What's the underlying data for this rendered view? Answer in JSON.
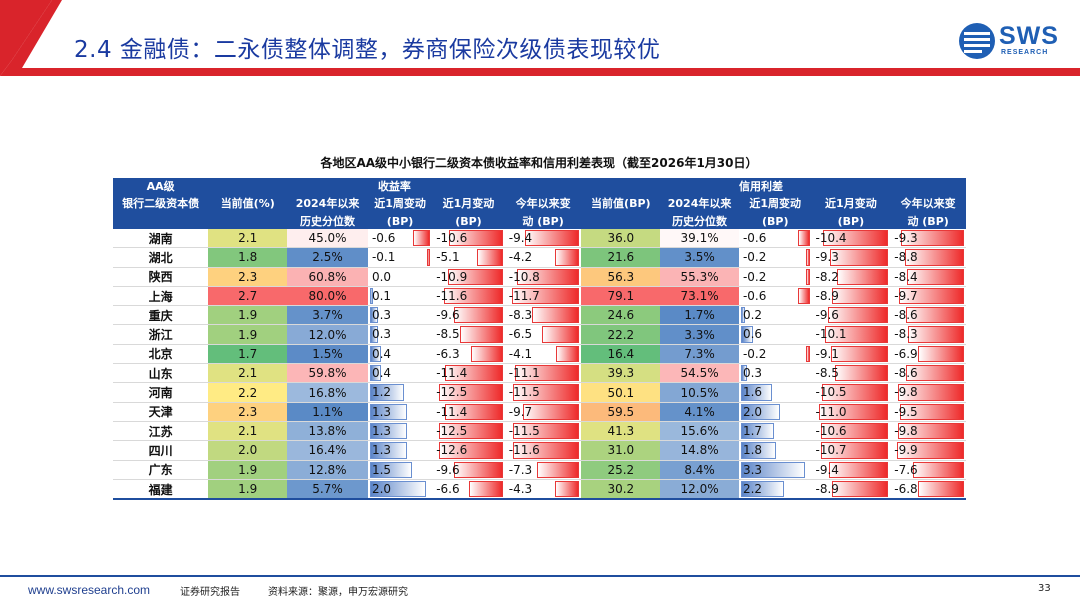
{
  "slide": {
    "title": "2.4 金融债：二永债整体调整，券商保险次级债表现较优",
    "logo_text": "SWS",
    "logo_sub": "RESEARCH"
  },
  "table": {
    "title": "各地区AA级中小银行二级资本债收益率和信用利差表现（截至2026年1月30日）",
    "group_yield": "收益率",
    "group_spread": "信用利差",
    "headers": {
      "region_l1": "AA级",
      "region_l2": "银行二级资本债",
      "cur_yield": "当前值(%)",
      "pct_l1": "2024年以来",
      "pct_l2": "历史分位数",
      "wk_l1": "近1周变动",
      "wk_l2": "(BP)",
      "mo_l1": "近1月变动",
      "mo_l2": "(BP)",
      "ytd_l1": "今年以来变",
      "ytd_l2": "动 (BP)",
      "cur_spread": "当前值(BP)",
      "spct_l1": "2024年以来",
      "spct_l2": "历史分位数",
      "swk_l1": "近1周变动",
      "swk_l2": "(BP)",
      "smo_l1": "近1月变动",
      "smo_l2": "(BP)",
      "sytd_l1": "今年以来变",
      "sytd_l2": "动 (BP)"
    },
    "rows": [
      {
        "region": "湖南",
        "y": "2.1",
        "yp": "45.0%",
        "yw": "-0.6",
        "ym": "-10.6",
        "yy": "-9.4",
        "s": "36.0",
        "sp": "39.1%",
        "sw": "-0.6",
        "sm": "-10.4",
        "sy": "-9.3"
      },
      {
        "region": "湖北",
        "y": "1.8",
        "yp": "2.5%",
        "yw": "-0.1",
        "ym": "-5.1",
        "yy": "-4.2",
        "s": "21.6",
        "sp": "3.5%",
        "sw": "-0.2",
        "sm": "-9.3",
        "sy": "-8.8"
      },
      {
        "region": "陕西",
        "y": "2.3",
        "yp": "60.8%",
        "yw": "0.0",
        "ym": "-10.9",
        "yy": "-10.8",
        "s": "56.3",
        "sp": "55.3%",
        "sw": "-0.2",
        "sm": "-8.2",
        "sy": "-8.4"
      },
      {
        "region": "上海",
        "y": "2.7",
        "yp": "80.0%",
        "yw": "0.1",
        "ym": "-11.6",
        "yy": "-11.7",
        "s": "79.1",
        "sp": "73.1%",
        "sw": "-0.6",
        "sm": "-8.9",
        "sy": "-9.7"
      },
      {
        "region": "重庆",
        "y": "1.9",
        "yp": "3.7%",
        "yw": "0.3",
        "ym": "-9.6",
        "yy": "-8.3",
        "s": "24.6",
        "sp": "1.7%",
        "sw": "0.2",
        "sm": "-9.6",
        "sy": "-8.6"
      },
      {
        "region": "浙江",
        "y": "1.9",
        "yp": "12.0%",
        "yw": "0.3",
        "ym": "-8.5",
        "yy": "-6.5",
        "s": "22.2",
        "sp": "3.3%",
        "sw": "0.6",
        "sm": "-10.1",
        "sy": "-8.3"
      },
      {
        "region": "北京",
        "y": "1.7",
        "yp": "1.5%",
        "yw": "0.4",
        "ym": "-6.3",
        "yy": "-4.1",
        "s": "16.4",
        "sp": "7.3%",
        "sw": "-0.2",
        "sm": "-9.1",
        "sy": "-6.9"
      },
      {
        "region": "山东",
        "y": "2.1",
        "yp": "59.8%",
        "yw": "0.4",
        "ym": "-11.4",
        "yy": "-11.1",
        "s": "39.3",
        "sp": "54.5%",
        "sw": "0.3",
        "sm": "-8.5",
        "sy": "-8.6"
      },
      {
        "region": "河南",
        "y": "2.2",
        "yp": "16.8%",
        "yw": "1.2",
        "ym": "-12.5",
        "yy": "-11.5",
        "s": "50.1",
        "sp": "10.5%",
        "sw": "1.6",
        "sm": "-10.5",
        "sy": "-9.8"
      },
      {
        "region": "天津",
        "y": "2.3",
        "yp": "1.1%",
        "yw": "1.3",
        "ym": "-11.4",
        "yy": "-9.7",
        "s": "59.5",
        "sp": "4.1%",
        "sw": "2.0",
        "sm": "-11.0",
        "sy": "-9.5"
      },
      {
        "region": "江苏",
        "y": "2.1",
        "yp": "13.8%",
        "yw": "1.3",
        "ym": "-12.5",
        "yy": "-11.5",
        "s": "41.3",
        "sp": "15.6%",
        "sw": "1.7",
        "sm": "-10.6",
        "sy": "-9.8"
      },
      {
        "region": "四川",
        "y": "2.0",
        "yp": "16.4%",
        "yw": "1.3",
        "ym": "-12.6",
        "yy": "-11.6",
        "s": "31.0",
        "sp": "14.8%",
        "sw": "1.8",
        "sm": "-10.7",
        "sy": "-9.9"
      },
      {
        "region": "广东",
        "y": "1.9",
        "yp": "12.8%",
        "yw": "1.5",
        "ym": "-9.6",
        "yy": "-7.3",
        "s": "25.2",
        "sp": "8.4%",
        "sw": "3.3",
        "sm": "-9.4",
        "sy": "-7.6"
      },
      {
        "region": "福建",
        "y": "1.9",
        "yp": "5.7%",
        "yw": "2.0",
        "ym": "-6.6",
        "yy": "-4.3",
        "s": "30.2",
        "sp": "12.0%",
        "sw": "2.2",
        "sm": "-8.9",
        "sy": "-6.8"
      }
    ]
  },
  "footer": {
    "url": "www.swsresearch.com",
    "report": "证券研究报告",
    "source": "资料来源：聚源，申万宏源研究",
    "page": "33"
  },
  "colors": {
    "brand_blue": "#1f4e9e",
    "title_blue": "#1a3aa0",
    "accent_red": "#d9242b"
  }
}
